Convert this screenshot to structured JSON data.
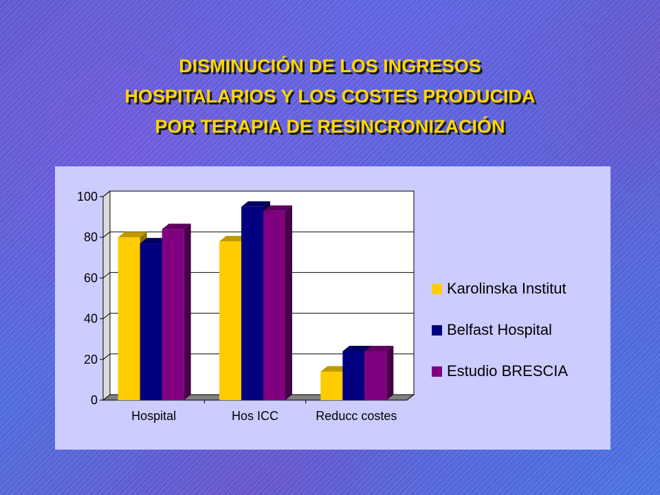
{
  "title": {
    "line1": "DISMINUCIÓN DE LOS INGRESOS",
    "line2": "HOSPITALARIOS Y LOS COSTES PRODUCIDA",
    "line3": "POR TERAPIA DE RESINCRONIZACIÓN"
  },
  "chart_data": {
    "type": "bar",
    "categories": [
      "Hospital",
      "Hos ICC",
      "Reducc costes"
    ],
    "series": [
      {
        "name": "Karolinska Institut",
        "color": "#ffcc00",
        "values": [
          80,
          78,
          14
        ]
      },
      {
        "name": "Belfast Hospital",
        "color": "#000080",
        "values": [
          77,
          95,
          24
        ]
      },
      {
        "name": "Estudio BRESCIA",
        "color": "#800080",
        "values": [
          84,
          93,
          24
        ]
      }
    ],
    "yticks": [
      "0",
      "20",
      "40",
      "60",
      "80",
      "100"
    ],
    "ylim": [
      0,
      100
    ],
    "grid": true,
    "legend_position": "right",
    "three_d": true
  }
}
